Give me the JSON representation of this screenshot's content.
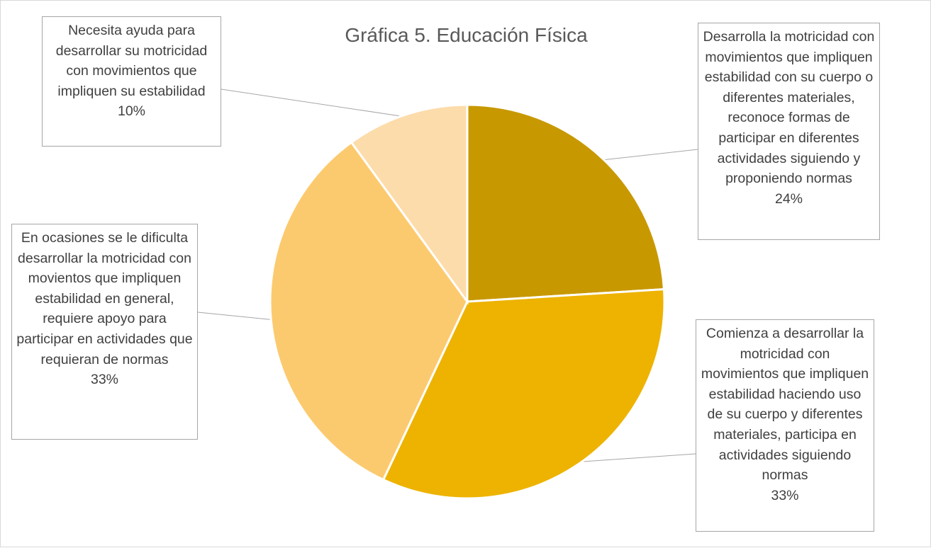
{
  "chart_data": {
    "type": "pie",
    "title": "Gráfica 5. Educación Física",
    "slices": [
      {
        "label": "Desarrolla la motricidad con movimientos  que impliquen estabilidad con su cuerpo o diferentes materiales, reconoce formas de participar en diferentes actividades siguiendo y proponiendo normas",
        "value": 24,
        "percent_label": "24%",
        "color": "#C89800"
      },
      {
        "label": "Comienza a desarrollar la motricidad con movimientos que impliquen estabilidad haciendo uso de su cuerpo y diferentes materiales, participa en actividades siguiendo normas",
        "value": 33,
        "percent_label": "33%",
        "color": "#EDB300"
      },
      {
        "label": "En ocasiones se le dificulta desarrollar la motricidad con movientos que impliquen estabilidad en general, requiere apoyo para participar en actividades que requieran de normas",
        "value": 33,
        "percent_label": "33%",
        "color": "#FCCA6E"
      },
      {
        "label": "Necesita ayuda para desarrollar su motricidad con movimientos que impliquen su estabilidad",
        "value": 10,
        "percent_label": "10%",
        "color": "#FDDCAB"
      }
    ],
    "start_angle": "12 o'clock",
    "direction": "clockwise",
    "legend": "none",
    "data_labels": "callouts with category name and percentage"
  }
}
